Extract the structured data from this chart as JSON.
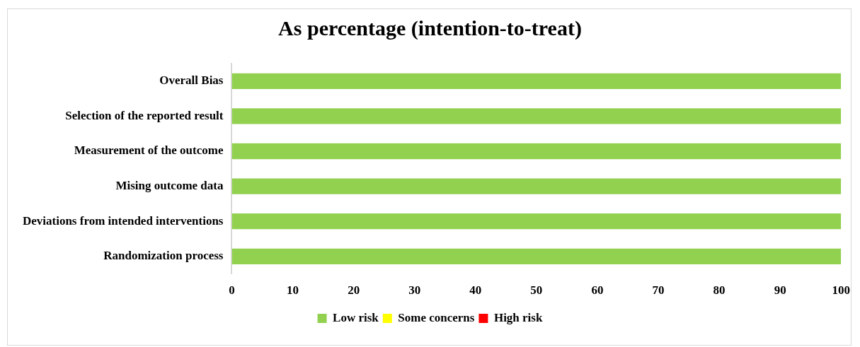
{
  "chart_data": {
    "type": "bar",
    "title": "As percentage (intention-to-treat)",
    "orientation": "horizontal",
    "stacked": true,
    "categories": [
      "Overall Bias",
      "Selection of the reported result",
      "Measurement of the outcome",
      "Mising outcome data",
      "Deviations from intended interventions",
      "Randomization process"
    ],
    "series": [
      {
        "name": "Low risk",
        "color": "#92d050",
        "values": [
          100,
          100,
          100,
          100,
          100,
          100
        ]
      },
      {
        "name": "Some concerns",
        "color": "#ffff00",
        "values": [
          0,
          0,
          0,
          0,
          0,
          0
        ]
      },
      {
        "name": "High risk",
        "color": "#ff0000",
        "values": [
          0,
          0,
          0,
          0,
          0,
          0
        ]
      }
    ],
    "xlim": [
      0,
      100
    ],
    "xticks": [
      0,
      10,
      20,
      30,
      40,
      50,
      60,
      70,
      80,
      90,
      100
    ],
    "legend": "bottom"
  }
}
